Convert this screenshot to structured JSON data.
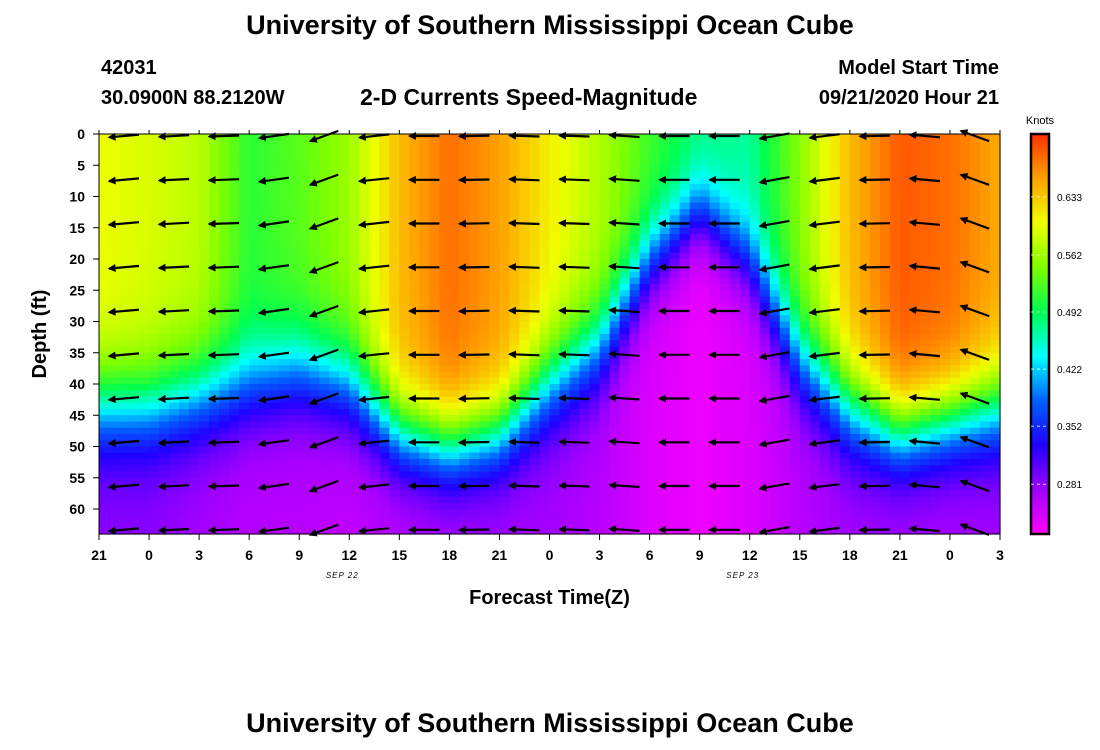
{
  "header": {
    "top_title": "University of Southern Mississippi Ocean Cube",
    "bottom_title": "University of Southern Mississippi Ocean Cube",
    "station_id": "42031",
    "station_location": "30.0900N 88.2120W",
    "product_title": "2-D Currents Speed-Magnitude",
    "model_start_label": "Model Start Time",
    "model_start_value": "09/21/2020 Hour 21"
  },
  "chart_data": {
    "type": "heatmap",
    "title": "2-D Currents Speed-Magnitude",
    "xlabel": "Forecast Time(Z)",
    "ylabel": "Depth (ft)",
    "colorbar_unit": "Knots",
    "x_tick_labels": [
      "21",
      "0",
      "3",
      "6",
      "9",
      "12",
      "15",
      "18",
      "21",
      "0",
      "3",
      "6",
      "9",
      "12",
      "15",
      "18",
      "21",
      "0",
      "3"
    ],
    "x_range_hours": [
      0,
      54
    ],
    "x_date_labels": [
      {
        "text": "SEP 22",
        "forecast_hour": 15
      },
      {
        "text": "SEP 23",
        "forecast_hour": 39
      }
    ],
    "y_tick_labels": [
      "0",
      "5",
      "10",
      "15",
      "20",
      "25",
      "30",
      "35",
      "40",
      "45",
      "50",
      "55",
      "60"
    ],
    "y_range": [
      0,
      64
    ],
    "y_inverted": true,
    "colorbar_ticks": [
      "0.633",
      "0.562",
      "0.492",
      "0.422",
      "0.352",
      "0.281"
    ],
    "colorbar_range": [
      0.22,
      0.71
    ],
    "colorbar_colors": [
      "#ff00ff",
      "#9f00ff",
      "#1f00ff",
      "#0060ff",
      "#00ffff",
      "#00ff50",
      "#80ff00",
      "#f0ff00",
      "#ffa000",
      "#ff3000"
    ],
    "speed_profile": {
      "forecast_hour": [
        0,
        3,
        6,
        9,
        12,
        15,
        18,
        21,
        24,
        27,
        30,
        33,
        36,
        39,
        42,
        45,
        48,
        51,
        54
      ],
      "surface_speed": [
        0.6,
        0.59,
        0.575,
        0.51,
        0.53,
        0.56,
        0.64,
        0.68,
        0.655,
        0.61,
        0.57,
        0.52,
        0.48,
        0.47,
        0.55,
        0.64,
        0.69,
        0.68,
        0.65
      ],
      "bottom_speed": [
        0.28,
        0.28,
        0.27,
        0.26,
        0.26,
        0.255,
        0.26,
        0.265,
        0.27,
        0.27,
        0.26,
        0.24,
        0.23,
        0.24,
        0.26,
        0.27,
        0.27,
        0.27,
        0.27
      ],
      "gradient_center_ft": [
        44,
        44,
        42,
        40,
        38,
        40,
        48,
        50,
        48,
        40,
        34,
        20,
        12,
        20,
        36,
        44,
        48,
        46,
        44
      ],
      "gradient_width_ft": [
        18,
        18,
        18,
        18,
        18,
        18,
        16,
        16,
        16,
        18,
        18,
        16,
        14,
        16,
        18,
        18,
        16,
        16,
        18
      ]
    },
    "vector_columns_hours": [
      1.5,
      4.5,
      7.5,
      10.5,
      13.5,
      16.5,
      19.5,
      22.5,
      25.5,
      28.5,
      31.5,
      34.5,
      37.5,
      40.5,
      43.5,
      46.5,
      49.5,
      52.5
    ],
    "vector_depths_ft": [
      0,
      7,
      14,
      21,
      28,
      35,
      42,
      49,
      56,
      63
    ],
    "vector_direction_deg": [
      185,
      183,
      182,
      188,
      200,
      186,
      180,
      181,
      178,
      178,
      176,
      180,
      180,
      190,
      187,
      181,
      175,
      160
    ]
  }
}
